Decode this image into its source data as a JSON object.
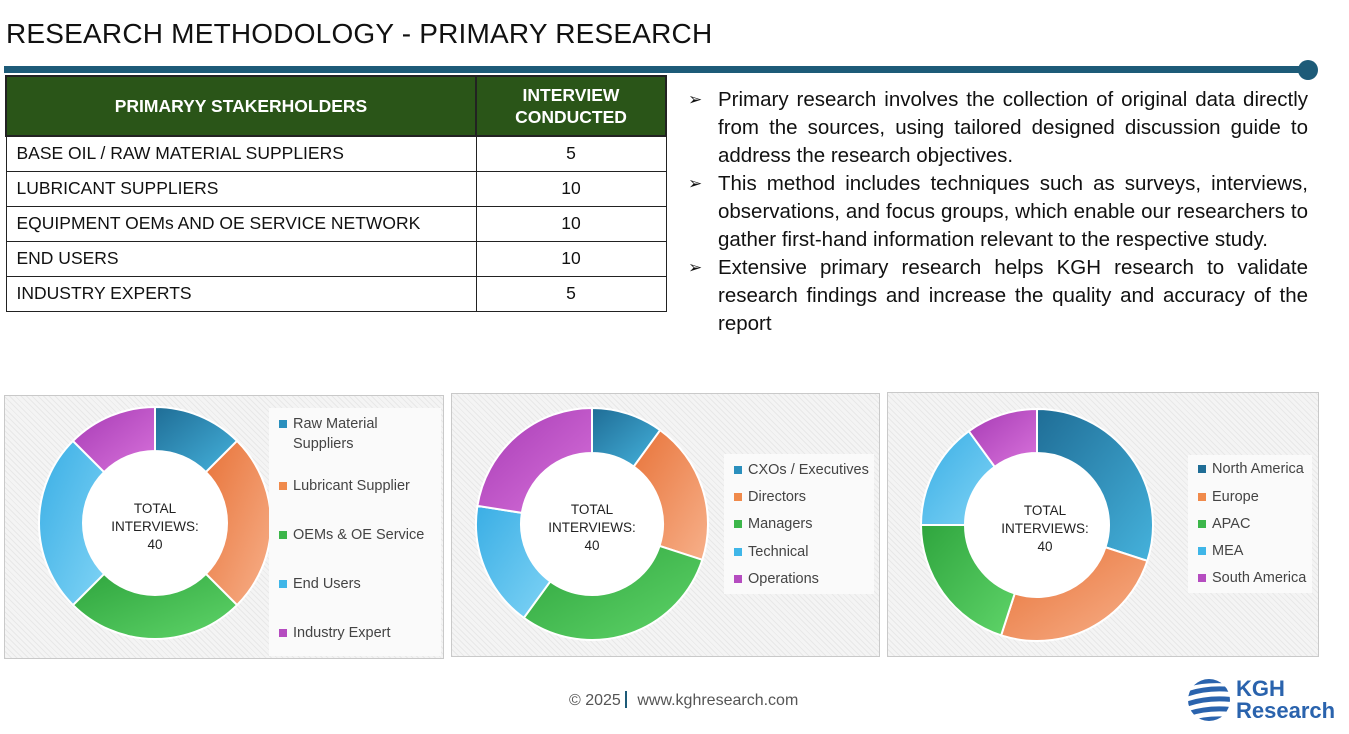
{
  "page": {
    "title": "RESEARCH METHODOLOGY - PRIMARY RESEARCH"
  },
  "table": {
    "header": [
      "PRIMARYY STAKERHOLDERS",
      "INTERVIEW CONDUCTED"
    ],
    "rows": [
      {
        "name": "BASE OIL / RAW MATERIAL SUPPLIERS",
        "count": "5"
      },
      {
        "name": "LUBRICANT SUPPLIERS",
        "count": "10"
      },
      {
        "name": "EQUIPMENT OEMs AND OE SERVICE NETWORK",
        "count": "10"
      },
      {
        "name": "END USERS",
        "count": "10"
      },
      {
        "name": "INDUSTRY EXPERTS",
        "count": "5"
      }
    ]
  },
  "bullets": [
    "Primary research involves the collection of original data directly from the sources, using tailored designed discussion guide to address the research objectives.",
    "This method includes techniques such as surveys, interviews, observations, and focus groups, which enable our researchers to gather first-hand information relevant to the respective study.",
    "Extensive primary research helps KGH research to validate research findings and increase the quality and accuracy of the report"
  ],
  "colors": {
    "header_green": "#2a5518",
    "accent_blue": "#1d5b78",
    "series": [
      "#2a8fbd",
      "#f08a4b",
      "#3cb64a",
      "#3fb6e8",
      "#b54cc0"
    ]
  },
  "chart_data": [
    {
      "type": "pie",
      "donut": true,
      "center_text": [
        "TOTAL",
        "INTERVIEWS:",
        "40"
      ],
      "categories": [
        "Raw Material Suppliers",
        "Lubricant Supplier",
        "OEMs & OE Service",
        "End Users",
        "Industry Expert"
      ],
      "values": [
        5,
        10,
        10,
        10,
        5
      ],
      "legend": "right"
    },
    {
      "type": "pie",
      "donut": true,
      "center_text": [
        "TOTAL",
        "INTERVIEWS:",
        "40"
      ],
      "categories": [
        "CXOs / Executives",
        "Directors",
        "Managers",
        "Technical",
        "Operations"
      ],
      "values": [
        4,
        8,
        12,
        7,
        9
      ],
      "legend": "right"
    },
    {
      "type": "pie",
      "donut": true,
      "center_text": [
        "TOTAL",
        "INTERVIEWS:",
        "40"
      ],
      "categories": [
        "North America",
        "Europe",
        "APAC",
        "MEA",
        "South America"
      ],
      "values": [
        12,
        10,
        8,
        6,
        4
      ],
      "legend": "right"
    }
  ],
  "footer": {
    "copyright": "© 2025",
    "url": "www.kghresearch.com"
  },
  "logo": {
    "line1": "KGH",
    "line2": "Research"
  }
}
